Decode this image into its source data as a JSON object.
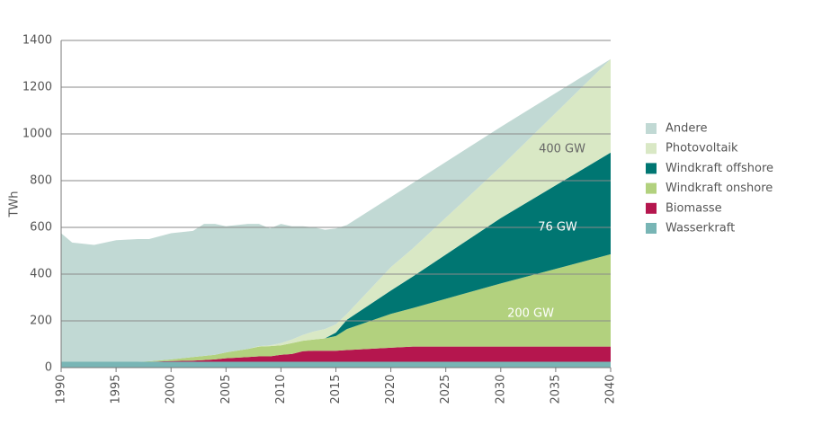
{
  "chart_data": {
    "type": "stacked-area",
    "y_label": "TWh",
    "x": [
      1990,
      1991,
      1993,
      1995,
      1997,
      1998,
      2000,
      2002,
      2003,
      2004,
      2005,
      2007,
      2008,
      2009,
      2010,
      2011,
      2012,
      2013,
      2014,
      2015,
      2016,
      2020,
      2022,
      2030,
      2040
    ],
    "series": [
      {
        "name": "Wasserkraft",
        "color": "#78b5b5",
        "values": [
          25,
          25,
          25,
          25,
          25,
          25,
          25,
          25,
          25,
          25,
          25,
          25,
          25,
          25,
          25,
          25,
          25,
          25,
          25,
          25,
          25,
          25,
          25,
          25,
          25
        ]
      },
      {
        "name": "Biomasse",
        "color": "#b5164e",
        "values": [
          0,
          0,
          0,
          0,
          0,
          0,
          3,
          5,
          7,
          10,
          15,
          20,
          23,
          23,
          30,
          33,
          45,
          47,
          47,
          47,
          50,
          60,
          65,
          65,
          65
        ]
      },
      {
        "name": "Windkraft onshore",
        "color": "#b2d17e",
        "values": [
          0,
          0,
          0,
          0,
          0,
          2,
          7,
          15,
          18,
          20,
          25,
          35,
          42,
          44,
          40,
          47,
          45,
          48,
          53,
          63,
          90,
          145,
          165,
          270,
          395
        ]
      },
      {
        "name": "Windkraft offshore",
        "color": "#007672",
        "values": [
          0,
          0,
          0,
          0,
          0,
          0,
          0,
          0,
          0,
          0,
          0,
          0,
          0,
          0,
          0,
          0,
          0,
          0,
          0,
          15,
          40,
          100,
          135,
          280,
          435
        ]
      },
      {
        "name": "Photovoltaik",
        "color": "#d9e8c5",
        "values": [
          0,
          0,
          0,
          0,
          0,
          0,
          0,
          0,
          0,
          0,
          0,
          0,
          2,
          3,
          10,
          15,
          25,
          35,
          40,
          35,
          25,
          100,
          120,
          220,
          400
        ]
      },
      {
        "name": "Andere",
        "color": "#c1d9d4",
        "values": [
          550,
          510,
          500,
          520,
          525,
          523,
          540,
          540,
          565,
          560,
          540,
          535,
          523,
          500,
          510,
          485,
          465,
          445,
          425,
          410,
          380,
          300,
          280,
          170,
          0
        ]
      }
    ],
    "annotations": [
      "400 GW",
      "76 GW",
      "200 GW"
    ],
    "xlim": [
      1990,
      2040
    ],
    "xticks": [
      1990,
      1995,
      2000,
      2005,
      2010,
      2015,
      2020,
      2025,
      2030,
      2035,
      2040
    ],
    "ylim": [
      0,
      1400
    ],
    "yticks": [
      0,
      200,
      400,
      600,
      800,
      1000,
      1200,
      1400
    ],
    "grid": true,
    "legend": "right"
  }
}
